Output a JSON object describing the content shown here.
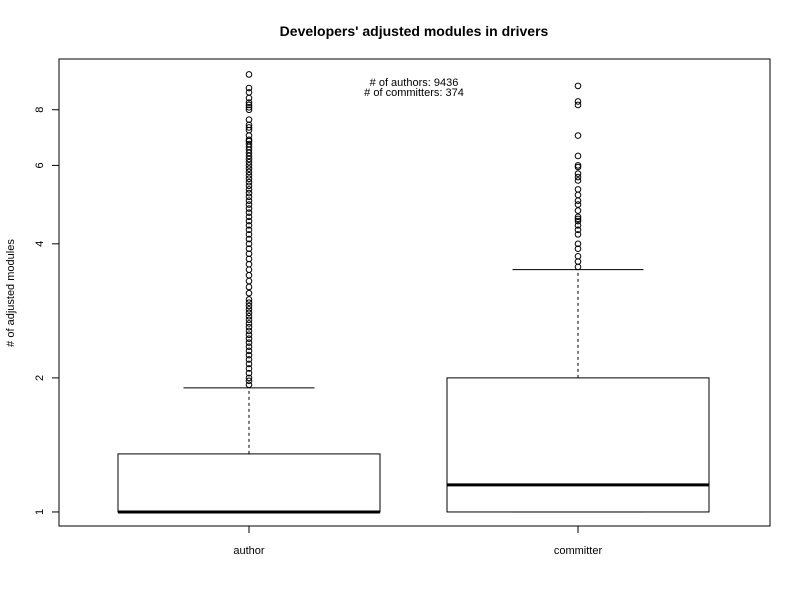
{
  "chart_data": {
    "type": "box",
    "title": "Developers' adjusted modules in drivers",
    "xlabel": "",
    "ylabel": "# of adjusted modules",
    "y_scale": "log",
    "ylim": [
      0.93,
      10.4
    ],
    "y_ticks": [
      1,
      2,
      4,
      6,
      8
    ],
    "grid": false,
    "annotations": [
      "# of authors: 9436",
      "# of committers: 374"
    ],
    "categories": [
      "author",
      "committer"
    ],
    "boxes": [
      {
        "category": "author",
        "min": 1,
        "q1": 1,
        "median": 1,
        "q3": 1.35,
        "whisker_low": 1,
        "whisker_high": 1.9,
        "outliers": [
          1.93,
          1.97,
          2.0,
          2.05,
          2.1,
          2.15,
          2.2,
          2.25,
          2.3,
          2.35,
          2.4,
          2.45,
          2.5,
          2.55,
          2.6,
          2.65,
          2.7,
          2.75,
          2.8,
          2.85,
          2.9,
          2.95,
          3.0,
          3.1,
          3.2,
          3.3,
          3.4,
          3.5,
          3.6,
          3.7,
          3.8,
          3.9,
          4.0,
          4.1,
          4.2,
          4.3,
          4.4,
          4.5,
          4.6,
          4.7,
          4.8,
          4.9,
          5.0,
          5.1,
          5.2,
          5.3,
          5.4,
          5.5,
          5.6,
          5.7,
          5.8,
          5.9,
          6.0,
          6.1,
          6.2,
          6.3,
          6.4,
          6.5,
          6.6,
          6.7,
          6.8,
          6.85,
          7.0,
          7.2,
          7.3,
          7.4,
          7.6,
          8.0,
          8.1,
          8.2,
          8.3,
          8.5,
          8.75,
          8.95,
          9.6
        ]
      },
      {
        "category": "committer",
        "min": 1,
        "q1": 1,
        "median": 1.15,
        "q3": 2,
        "whisker_low": 1,
        "whisker_high": 3.5,
        "outliers": [
          3.55,
          3.65,
          3.75,
          3.9,
          4.0,
          4.2,
          4.3,
          4.4,
          4.5,
          4.55,
          4.6,
          4.75,
          4.9,
          5.0,
          5.15,
          5.3,
          5.55,
          5.65,
          5.75,
          5.95,
          6.0,
          6.3,
          7.0,
          8.2,
          8.35,
          9.05
        ]
      }
    ]
  }
}
